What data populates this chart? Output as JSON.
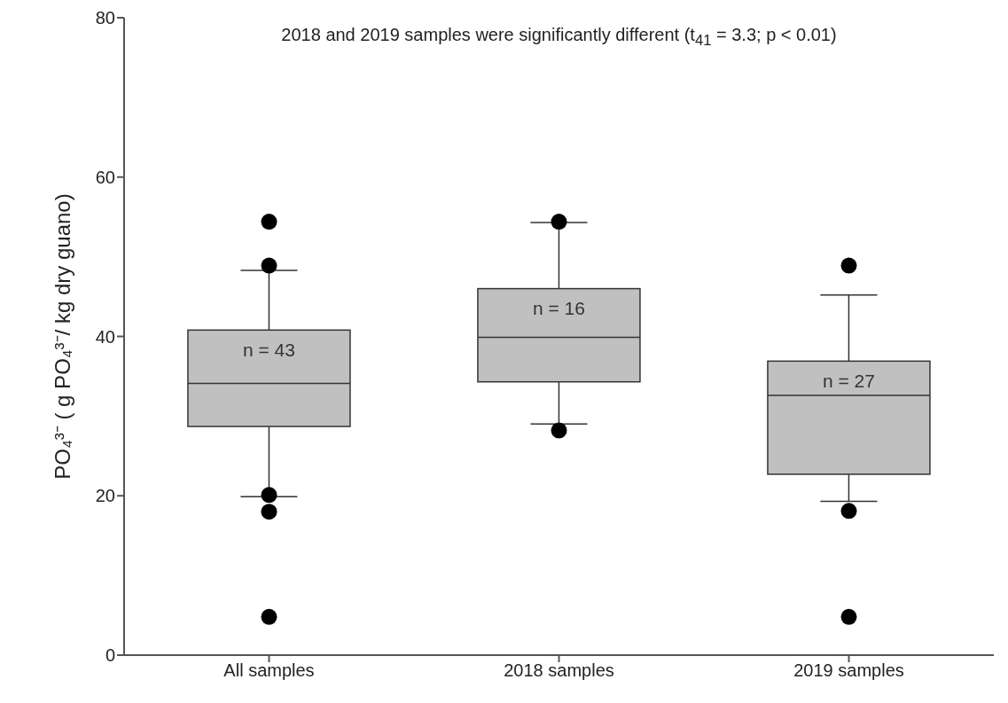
{
  "chart_data": {
    "type": "box",
    "categories": [
      "All samples",
      "2018 samples",
      "2019 samples"
    ],
    "ylabel": "PO₄³⁻ ( g PO₄³⁻/ kg dry guano)",
    "color": "#c0c0c0",
    "marker": "circle",
    "grid": false,
    "ylim": [
      0,
      80
    ],
    "yticks": [
      0,
      20,
      40,
      60,
      80
    ],
    "boxes": [
      {
        "low": 19.9,
        "q1": 28.7,
        "median": 34.1,
        "q3": 40.8,
        "high": 48.3,
        "outliers": [
          54.4,
          48.9,
          20.1,
          18.0,
          4.8
        ]
      },
      {
        "low": 29.0,
        "q1": 34.3,
        "median": 39.9,
        "q3": 46.0,
        "high": 54.3,
        "outliers": [
          54.4,
          28.2
        ]
      },
      {
        "low": 19.3,
        "q1": 22.7,
        "median": 32.6,
        "q3": 36.9,
        "high": 45.2,
        "outliers": [
          48.9,
          18.1,
          4.8
        ]
      }
    ],
    "annotations": [
      "2018 and 2019 samples were significantly different (t$_{41}$ = 3.3; p < 0.01)",
      "n = 43",
      "n = 16",
      "n = 27"
    ]
  }
}
